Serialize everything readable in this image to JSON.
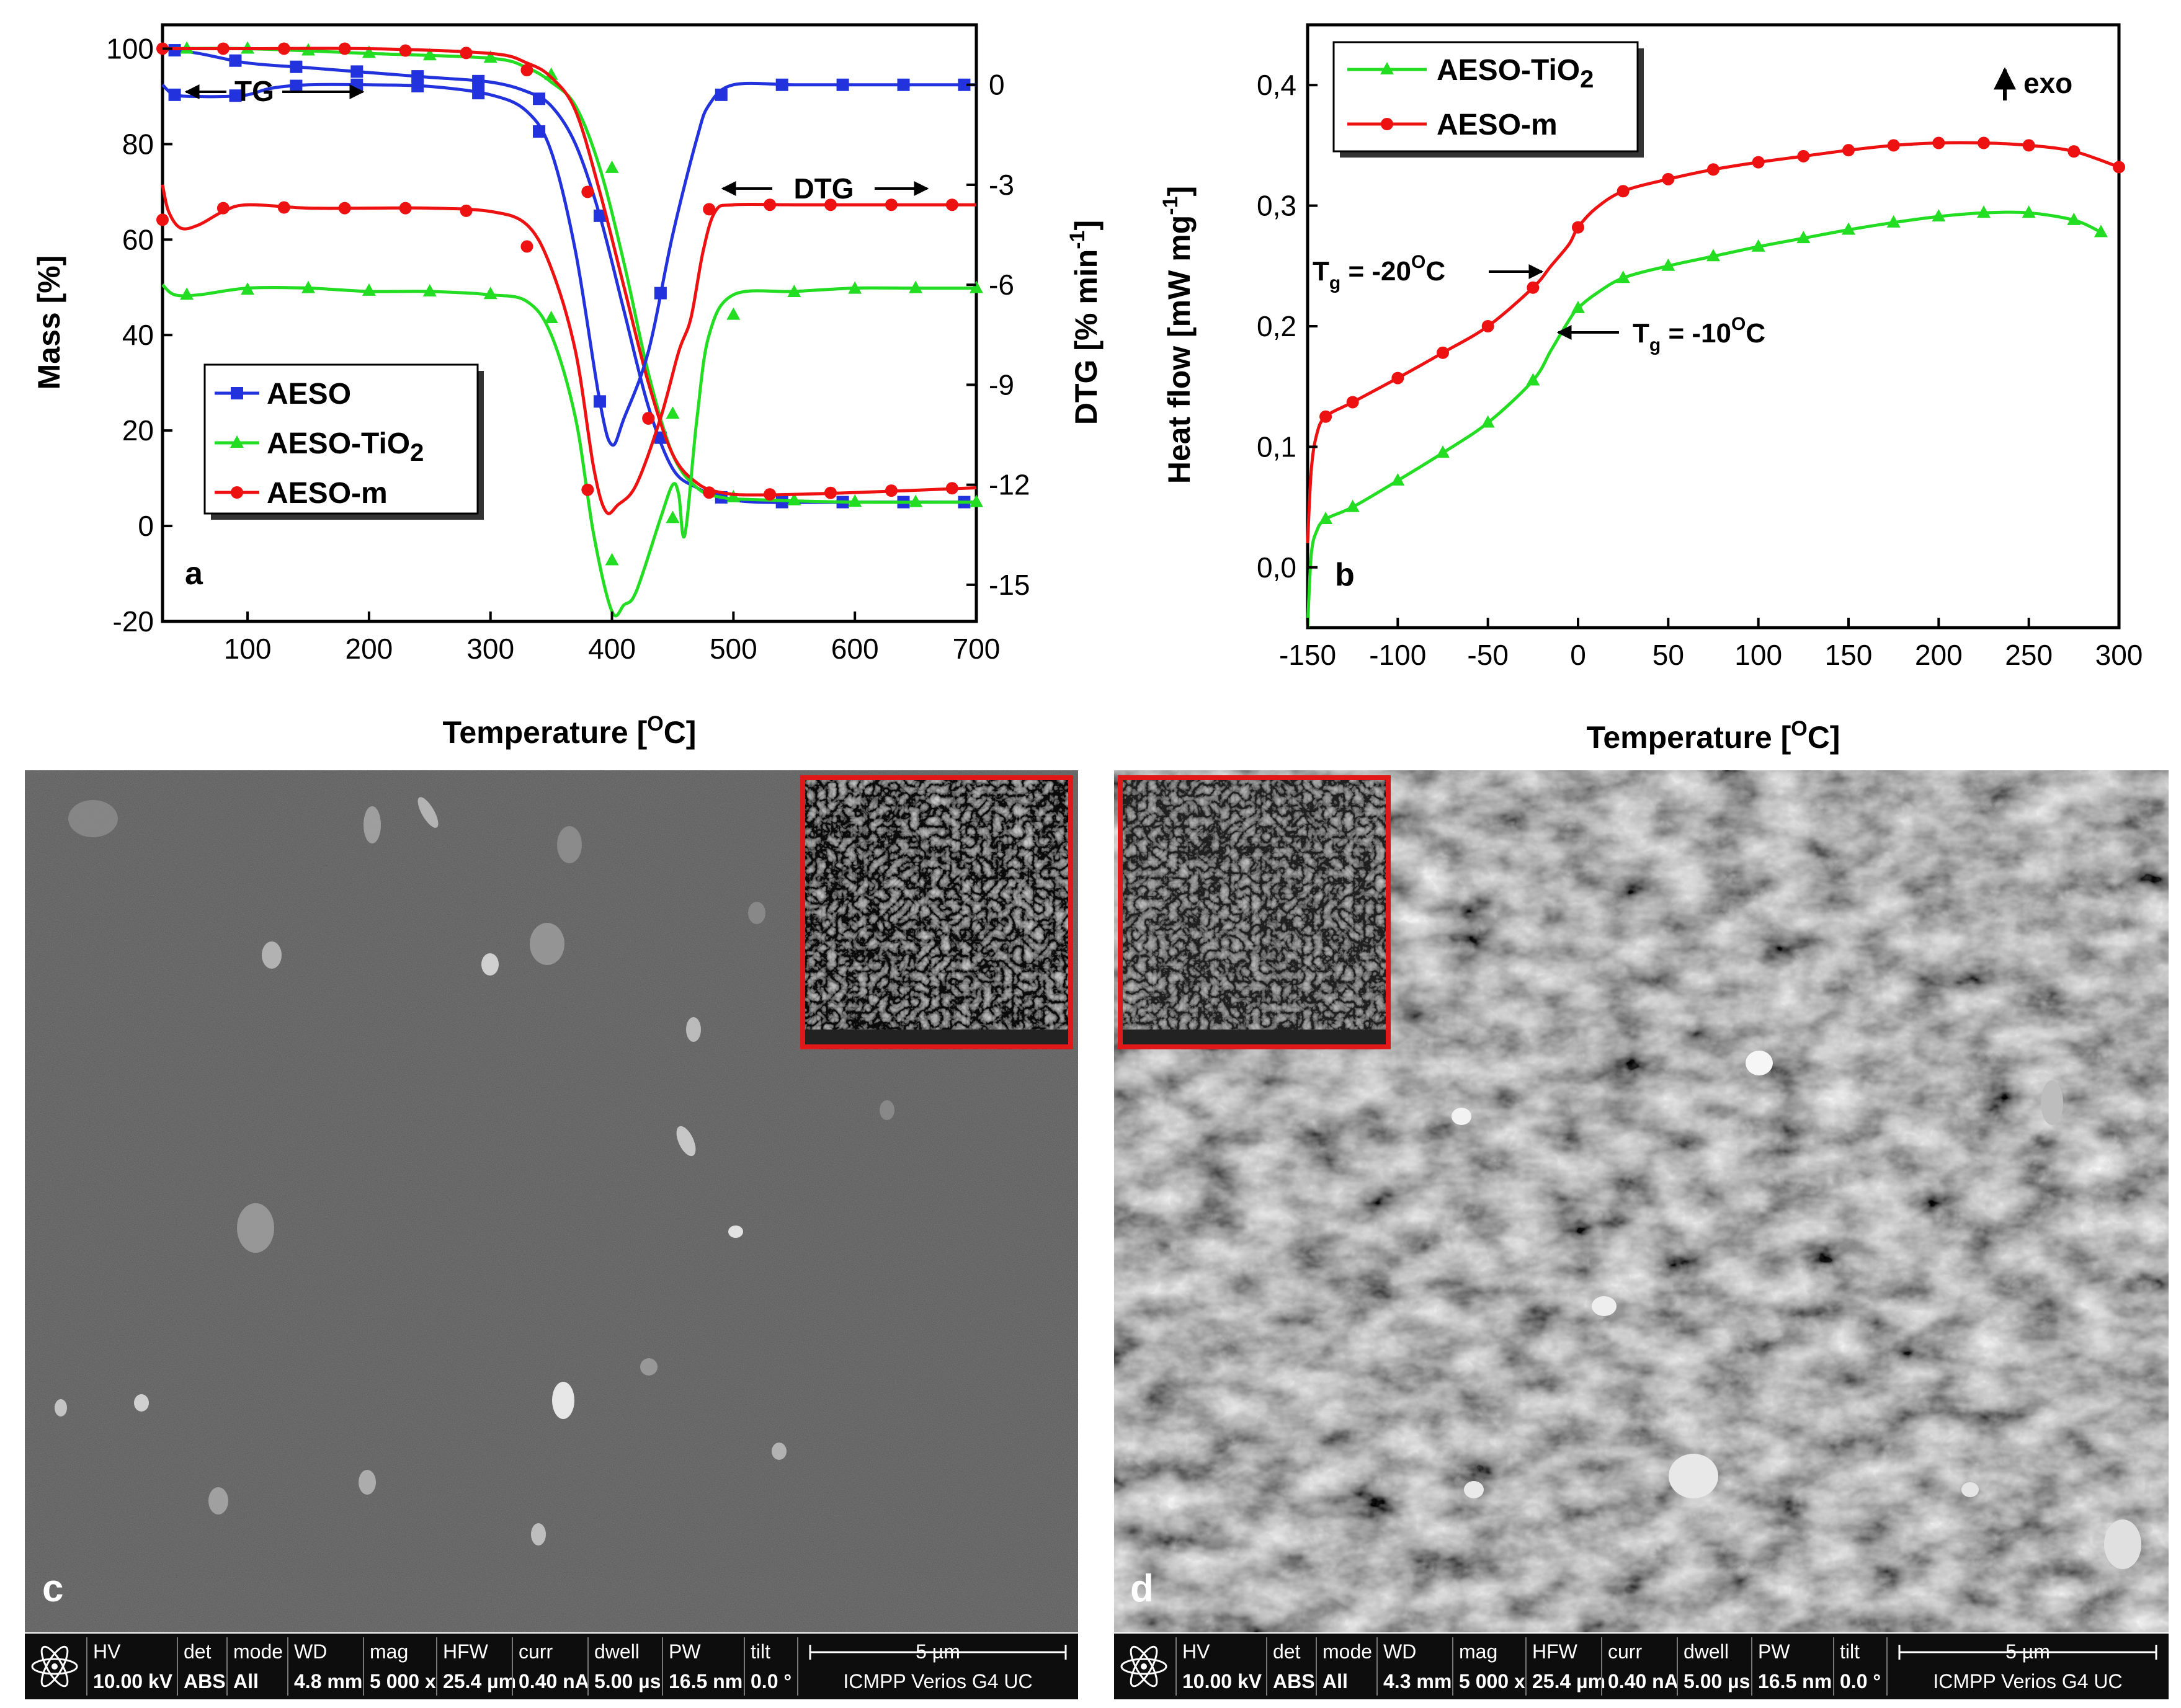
{
  "chart_data": [
    {
      "panel": "a",
      "type": "line",
      "xlabel": "Temperature [",
      "xlabel_sup": "O",
      "xlabel_end": "C]",
      "ylabel": "Mass [%]",
      "y2label": "DTG [% min",
      "y2label_sup": "-1",
      "y2label_end": "]",
      "xlim": [
        30,
        700
      ],
      "ylim": [
        -20,
        105
      ],
      "y2lim": [
        -16.1,
        1.8
      ],
      "xticks": [
        "100",
        "200",
        "300",
        "400",
        "500",
        "600",
        "700"
      ],
      "yticks": [
        "-20",
        "0",
        "20",
        "40",
        "60",
        "80",
        "100"
      ],
      "y2ticks": [
        "0",
        "-3",
        "-6",
        "-9",
        "-12",
        "-15"
      ],
      "annotations": {
        "tg": "TG",
        "dtg": "DTG"
      },
      "legend": {
        "position": "lower-left",
        "entries": [
          {
            "label": "AESO",
            "color": "#2233dd",
            "marker": "square"
          },
          {
            "label": "AESO-TiO",
            "sub": "2",
            "color": "#22dd22",
            "marker": "triangle"
          },
          {
            "label": "AESO-m",
            "color": "#ee1111",
            "marker": "circle"
          }
        ]
      },
      "series": [
        {
          "name": "AESO",
          "axis": "left",
          "curve": "TG",
          "color": "#2233dd",
          "marker": "square",
          "x": [
            30,
            60,
            100,
            150,
            200,
            250,
            300,
            330,
            350,
            370,
            390,
            410,
            430,
            450,
            470,
            490,
            520,
            600,
            700
          ],
          "y": [
            100,
            99,
            97,
            96,
            95,
            94,
            93,
            91,
            88,
            80,
            65,
            45,
            25,
            12,
            8,
            6,
            5,
            5,
            5
          ]
        },
        {
          "name": "AESO-TiO2",
          "axis": "left",
          "curve": "TG",
          "color": "#22dd22",
          "marker": "triangle",
          "x": [
            30,
            100,
            200,
            300,
            330,
            350,
            370,
            390,
            410,
            430,
            450,
            470,
            490,
            520,
            600,
            700
          ],
          "y": [
            100,
            100,
            99,
            98,
            96,
            93,
            88,
            75,
            55,
            32,
            15,
            8,
            6,
            5.5,
            5,
            5
          ]
        },
        {
          "name": "AESO-m",
          "axis": "left",
          "curve": "TG",
          "color": "#ee1111",
          "marker": "circle",
          "x": [
            30,
            100,
            200,
            300,
            330,
            350,
            370,
            390,
            410,
            430,
            450,
            470,
            490,
            520,
            600,
            700
          ],
          "y": [
            100,
            100,
            100,
            99,
            97,
            94,
            87,
            70,
            50,
            30,
            15,
            9,
            7,
            6.5,
            7,
            8
          ]
        },
        {
          "name": "AESO",
          "axis": "right",
          "curve": "DTG",
          "color": "#2233dd",
          "marker": "square",
          "x": [
            30,
            40,
            60,
            80,
            100,
            120,
            150,
            200,
            250,
            300,
            330,
            350,
            370,
            390,
            400,
            410,
            430,
            450,
            470,
            480,
            500,
            550,
            600,
            650,
            700
          ],
          "y": [
            0,
            -0.3,
            -0.35,
            -0.35,
            -0.3,
            -0.1,
            0,
            0,
            -0.05,
            -0.3,
            -0.8,
            -2.0,
            -5.0,
            -9.5,
            -10.8,
            -10.0,
            -8.0,
            -4.5,
            -1.6,
            -0.6,
            0,
            0,
            0,
            0,
            0
          ]
        },
        {
          "name": "AESO-TiO2",
          "axis": "right",
          "curve": "DTG",
          "color": "#22dd22",
          "marker": "triangle",
          "x": [
            30,
            40,
            60,
            100,
            150,
            200,
            250,
            300,
            330,
            350,
            370,
            385,
            400,
            410,
            420,
            440,
            450,
            455,
            460,
            470,
            480,
            500,
            550,
            600,
            650,
            700
          ],
          "y": [
            -6.0,
            -6.3,
            -6.3,
            -6.1,
            -6.1,
            -6.2,
            -6.2,
            -6.3,
            -6.5,
            -7.5,
            -10.0,
            -13.5,
            -15.8,
            -15.6,
            -15.2,
            -13.0,
            -12.0,
            -12.3,
            -13.5,
            -10.0,
            -7.5,
            -6.3,
            -6.2,
            -6.1,
            -6.1,
            -6.1
          ]
        },
        {
          "name": "AESO-m",
          "axis": "right",
          "curve": "DTG",
          "color": "#ee1111",
          "marker": "circle",
          "x": [
            30,
            35,
            45,
            60,
            80,
            100,
            150,
            200,
            250,
            300,
            330,
            350,
            370,
            385,
            395,
            405,
            420,
            440,
            455,
            465,
            475,
            485,
            500,
            550,
            600,
            650,
            700
          ],
          "y": [
            -3.0,
            -3.8,
            -4.3,
            -4.2,
            -3.8,
            -3.6,
            -3.7,
            -3.7,
            -3.7,
            -3.8,
            -4.2,
            -5.5,
            -8.0,
            -11.5,
            -12.8,
            -12.6,
            -12.0,
            -10.0,
            -8.0,
            -7.0,
            -5.0,
            -3.8,
            -3.6,
            -3.6,
            -3.6,
            -3.6,
            -3.6
          ]
        }
      ]
    },
    {
      "panel": "b",
      "type": "line",
      "xlabel": "Temperature [",
      "xlabel_sup": "O",
      "xlabel_end": "C]",
      "ylabel": "Heat flow [mW mg",
      "ylabel_sup": "-1",
      "ylabel_end": "]",
      "xlim": [
        -150,
        300
      ],
      "ylim": [
        -0.05,
        0.45
      ],
      "xticks": [
        "-150",
        "-100",
        "-50",
        "0",
        "50",
        "100",
        "150",
        "200",
        "250",
        "300"
      ],
      "yticks": [
        "0,0",
        "0,1",
        "0,2",
        "0,3",
        "0,4"
      ],
      "exo_label": "exo",
      "annotations": [
        {
          "text": "T",
          "sub": "g",
          "rest": " = -20",
          "sup": "O",
          "end": "C"
        },
        {
          "text": "T",
          "sub": "g",
          "rest": " = -10",
          "sup": "O",
          "end": "C"
        }
      ],
      "legend": {
        "position": "top-left",
        "entries": [
          {
            "label": "AESO-TiO",
            "sub": "2",
            "color": "#22dd22",
            "marker": "triangle"
          },
          {
            "label": "AESO-m",
            "color": "#ee1111",
            "marker": "circle"
          }
        ]
      },
      "series": [
        {
          "name": "AESO-TiO2",
          "color": "#22dd22",
          "marker": "triangle",
          "x": [
            -150,
            -148,
            -145,
            -140,
            -125,
            -100,
            -75,
            -50,
            -25,
            -15,
            -5,
            0,
            10,
            25,
            50,
            75,
            100,
            125,
            150,
            175,
            200,
            225,
            250,
            275,
            290
          ],
          "y": [
            -0.05,
            0.01,
            0.03,
            0.04,
            0.05,
            0.072,
            0.095,
            0.12,
            0.155,
            0.18,
            0.205,
            0.215,
            0.227,
            0.24,
            0.25,
            0.258,
            0.266,
            0.273,
            0.28,
            0.286,
            0.291,
            0.294,
            0.294,
            0.288,
            0.278
          ]
        },
        {
          "name": "AESO-m",
          "color": "#ee1111",
          "marker": "circle",
          "x": [
            -150,
            -148,
            -145,
            -140,
            -125,
            -100,
            -75,
            -50,
            -25,
            -15,
            -5,
            0,
            10,
            25,
            50,
            75,
            100,
            125,
            150,
            175,
            200,
            225,
            250,
            275,
            300
          ],
          "y": [
            0.02,
            0.08,
            0.11,
            0.125,
            0.137,
            0.157,
            0.178,
            0.2,
            0.232,
            0.25,
            0.268,
            0.282,
            0.298,
            0.312,
            0.322,
            0.33,
            0.336,
            0.341,
            0.346,
            0.35,
            0.352,
            0.352,
            0.35,
            0.345,
            0.332
          ]
        }
      ]
    }
  ],
  "panel_labels": {
    "a": "a",
    "b": "b",
    "c": "c",
    "d": "d"
  },
  "sem_c": {
    "headers": [
      "HV",
      "det",
      "mode",
      "WD",
      "mag",
      "HFW",
      "curr",
      "dwell",
      "PW",
      "tilt"
    ],
    "values": [
      "10.00 kV",
      "ABS",
      "All",
      "4.8 mm",
      "5 000 x",
      "25.4 µm",
      "0.40 nA",
      "5.00 µs",
      "16.5 nm",
      "0.0 °"
    ],
    "scale": "5 µm",
    "instrument": "ICMPP Verios G4 UC"
  },
  "sem_d": {
    "headers": [
      "HV",
      "det",
      "mode",
      "WD",
      "mag",
      "HFW",
      "curr",
      "dwell",
      "PW",
      "tilt"
    ],
    "values": [
      "10.00 kV",
      "ABS",
      "All",
      "4.3 mm",
      "5 000 x",
      "25.4 µm",
      "0.40 nA",
      "5.00 µs",
      "16.5 nm",
      "0.0 °"
    ],
    "scale": "5 µm",
    "instrument": "ICMPP Verios G4 UC"
  },
  "colors": {
    "aeso": "#2233dd",
    "tio2": "#22dd22",
    "aesom": "#ee1111",
    "inset_border": "#e01818"
  }
}
